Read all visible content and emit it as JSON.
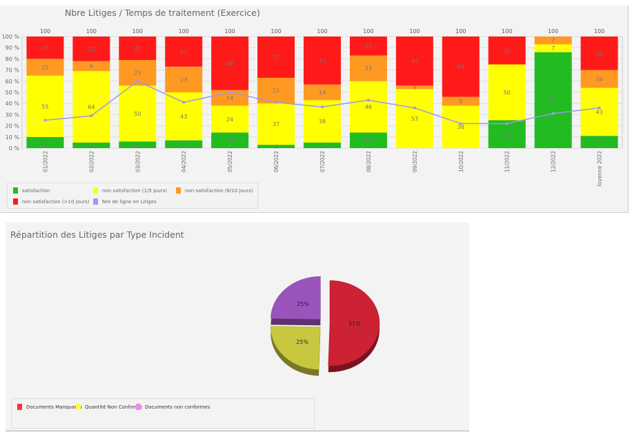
{
  "chart_data": [
    {
      "type": "bar",
      "stacked": "percent",
      "title": "Nbre Litiges / Temps de traitement (Exercice)",
      "categories": [
        "01/2022",
        "02/2022",
        "03/2022",
        "04/2022",
        "05/2022",
        "06/2022",
        "07/2022",
        "08/2022",
        "09/2022",
        "10/2022",
        "11/2022",
        "12/2022",
        "Moyenne 2022"
      ],
      "totals": [
        100,
        100,
        100,
        100,
        100,
        100,
        100,
        100,
        100,
        100,
        100,
        100,
        100
      ],
      "yticks": [
        "0 %",
        "10 %",
        "20 %",
        "30 %",
        "40 %",
        "50 %",
        "60 %",
        "70 %",
        "80 %",
        "90 %",
        "100 %"
      ],
      "ylim": [
        0,
        100
      ],
      "grid": true,
      "legend_position": "bottom-left",
      "series": [
        {
          "name": "satisfaction",
          "color": "#22bb22",
          "values": [
            10,
            5,
            6,
            7,
            14,
            3,
            5,
            14,
            0,
            0,
            25,
            86,
            11
          ]
        },
        {
          "name": "non satisfaction (1/5 jours)",
          "color": "#ffff00",
          "values": [
            55,
            64,
            50,
            43,
            24,
            37,
            38,
            46,
            53,
            38,
            50,
            7,
            43
          ]
        },
        {
          "name": "non satisfaction (6/10 jours)",
          "color": "#ff9922",
          "values": [
            15,
            9,
            23,
            23,
            14,
            23,
            14,
            23,
            3,
            8,
            0,
            7,
            16
          ]
        },
        {
          "name": "non satisfaction (>10 jours)",
          "color": "#ff1a1a",
          "values": [
            20,
            22,
            21,
            27,
            48,
            37,
            43,
            17,
            44,
            54,
            25,
            0,
            30
          ]
        },
        {
          "name": "Nre de ligne en Litiges",
          "type": "line",
          "color": "#9999ee",
          "values": [
            25,
            29,
            60,
            41,
            50,
            41,
            37,
            43,
            36,
            22,
            22,
            31,
            36
          ]
        }
      ]
    },
    {
      "type": "pie",
      "title": "Répartition des Litiges par Type Incident",
      "legend_position": "bottom-left",
      "slices": [
        {
          "name": "Documents Manquants",
          "value": 51,
          "label": "51%",
          "color": "#cc2233"
        },
        {
          "name": "Quantité Non Conforme",
          "value": 25,
          "label": "25%",
          "color": "#c8c840"
        },
        {
          "name": "Documents non conformes",
          "value": 25,
          "label": "25%",
          "color": "#9955bb"
        }
      ]
    }
  ]
}
